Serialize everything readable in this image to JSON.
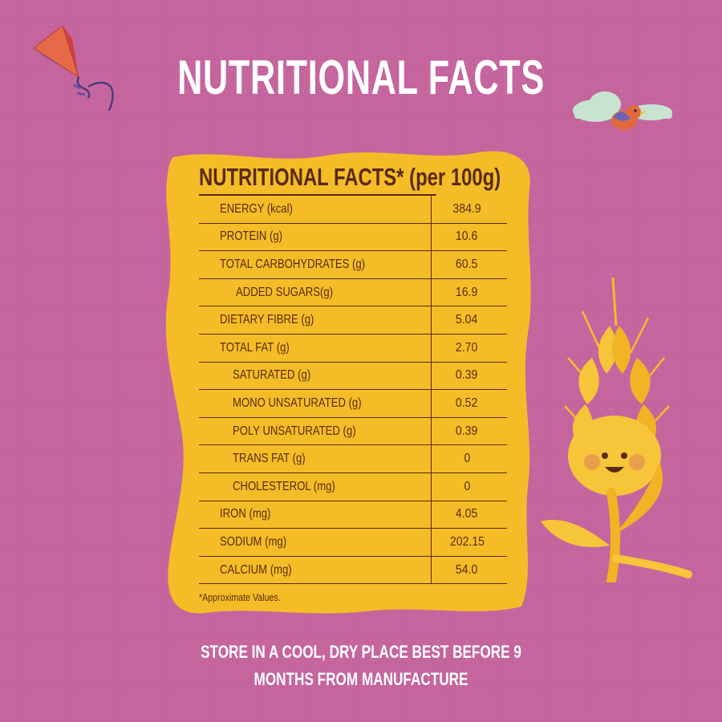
{
  "page_title": "NUTRITIONAL FACTS",
  "table": {
    "title": "NUTRITIONAL FACTS* (per 100g)",
    "rows": [
      {
        "label": "ENERGY (kcal)",
        "value": "384.9"
      },
      {
        "label": "PROTEIN (g)",
        "value": "10.6"
      },
      {
        "label": "TOTAL CARBOHYDRATES (g)",
        "value": "60.5"
      },
      {
        "label": "ADDED SUGARS(g)",
        "value": "16.9"
      },
      {
        "label": "DIETARY FIBRE (g)",
        "value": "5.04"
      },
      {
        "label": "TOTAL FAT (g)",
        "value": "2.70"
      },
      {
        "label": "SATURATED (g)",
        "value": "0.39"
      },
      {
        "label": "MONO UNSATURATED (g)",
        "value": "0.52"
      },
      {
        "label": "POLY UNSATURATED (g)",
        "value": "0.39"
      },
      {
        "label": "TRANS FAT (g)",
        "value": "0"
      },
      {
        "label": "CHOLESTEROL (mg)",
        "value": "0"
      },
      {
        "label": "IRON (mg)",
        "value": "4.05"
      },
      {
        "label": "SODIUM (mg)",
        "value": "202.15"
      },
      {
        "label": "CALCIUM (mg)",
        "value": "54.0"
      }
    ],
    "footnote": "*Approximate Values."
  },
  "storage": {
    "line1": "STORE IN A COOL, DRY PLACE BEST BEFORE 9",
    "line2": "MONTHS FROM MANUFACTURE"
  },
  "illustrations": {
    "kite": "kite-icon",
    "bird": "bird-on-cloud-icon",
    "wheat": "smiling-wheat-icon"
  },
  "colors": {
    "background": "#c5659e",
    "panel": "#f4bd28",
    "text_dark": "#5a2a12",
    "text_light": "#ffffff"
  }
}
